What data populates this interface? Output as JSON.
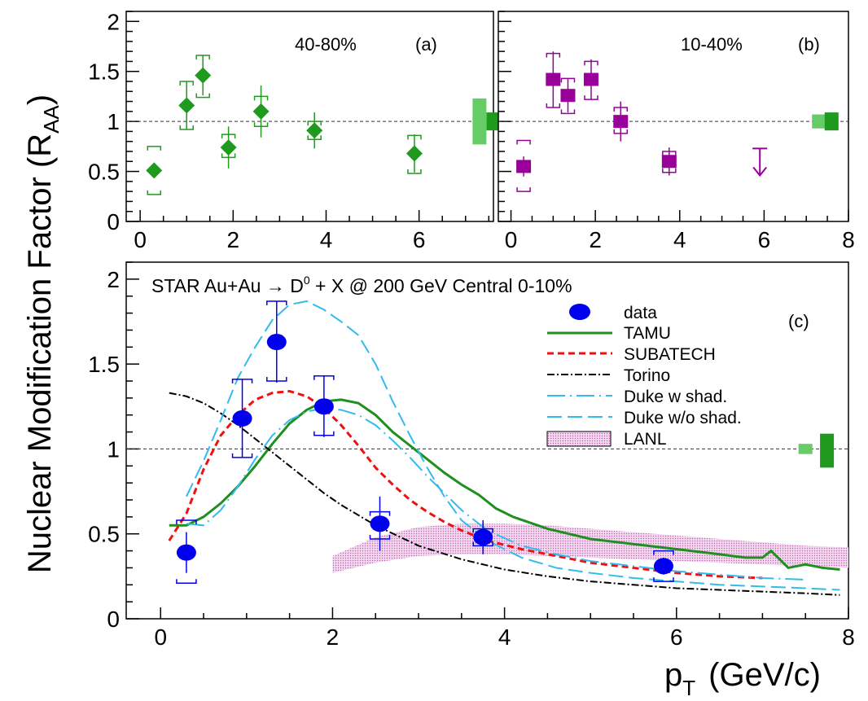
{
  "figure": {
    "ylabel_main": "Nuclear Modification Factor (R",
    "ylabel_sub": "AA",
    "ylabel_close": ")",
    "xlabel_main": "p",
    "xlabel_sub": "T",
    "xlabel_unit": "(GeV/c)"
  },
  "colors": {
    "green": "#1f9a1f",
    "light_green": "#66cc66",
    "purple": "#990099",
    "light_purple": "#cc66cc",
    "blue": "#0000ee",
    "tamu": "#1f8f1f",
    "subatech": "#ee1111",
    "duke": "#33bbee",
    "lanl_fill": "#e6b3dd"
  },
  "chart_data": [
    {
      "id": "a",
      "type": "scatter",
      "annotation": "40-80%",
      "panel_label": "(a)",
      "xlim": [
        -0.3,
        7.6
      ],
      "ylim": [
        0,
        2.1
      ],
      "xticks": [
        "0",
        "2",
        "4",
        "6"
      ],
      "yticks": [
        "0",
        "0.5",
        "1",
        "1.5",
        "2"
      ],
      "reference_line": 1,
      "series": [
        {
          "marker": "diamond",
          "x": [
            0.3,
            1.0,
            1.35,
            1.9,
            2.6,
            3.75,
            5.9
          ],
          "y": [
            0.51,
            1.16,
            1.46,
            0.74,
            1.1,
            0.91,
            0.68
          ],
          "stat_err": [
            0.0,
            0.24,
            0.2,
            0.21,
            0.26,
            0.18,
            0.19
          ],
          "sys_low": [
            0.27,
            0.92,
            1.24,
            0.64,
            0.95,
            0.82,
            0.48
          ],
          "sys_high": [
            0.75,
            1.4,
            1.66,
            0.87,
            1.25,
            1.0,
            0.86
          ]
        }
      ],
      "norm_boxes": [
        {
          "x": 7.3,
          "low": 0.77,
          "high": 1.23,
          "color": "light"
        },
        {
          "x": 7.6,
          "low": 0.91,
          "high": 1.09,
          "color": "dark"
        }
      ]
    },
    {
      "id": "b",
      "type": "scatter",
      "annotation": "10-40%",
      "panel_label": "(b)",
      "xlim": [
        -0.3,
        8.0
      ],
      "ylim": [
        0,
        2.1
      ],
      "xticks": [
        "0",
        "2",
        "4",
        "6",
        "8"
      ],
      "yticks": [],
      "reference_line": 1,
      "series": [
        {
          "marker": "square",
          "x": [
            0.3,
            1.0,
            1.35,
            1.9,
            2.6,
            3.75
          ],
          "y": [
            0.55,
            1.42,
            1.26,
            1.42,
            1.0,
            0.6
          ],
          "stat_err": [
            0.1,
            0.28,
            0.17,
            0.2,
            0.2,
            0.14
          ],
          "sys_low": [
            0.3,
            1.14,
            1.08,
            1.22,
            0.88,
            0.49
          ],
          "sys_high": [
            0.81,
            1.68,
            1.43,
            1.6,
            1.14,
            0.7
          ]
        }
      ],
      "upper_limit": {
        "x": 5.9,
        "y": 0.73
      },
      "norm_boxes": [
        {
          "x": 7.3,
          "low": 0.93,
          "high": 1.07,
          "color": "light"
        },
        {
          "x": 7.6,
          "low": 0.91,
          "high": 1.09,
          "color": "dark"
        }
      ]
    },
    {
      "id": "c",
      "type": "line",
      "title": "STAR Au+Au → D",
      "title_sup": "0",
      "title_rest": " + X @ 200 GeV Central 0-10%",
      "panel_label": "(c)",
      "xlim": [
        -0.4,
        8.0
      ],
      "ylim": [
        0,
        2.1
      ],
      "xticks": [
        "0",
        "2",
        "4",
        "6",
        "8"
      ],
      "yticks": [
        "0",
        "0.5",
        "1",
        "1.5",
        "2"
      ],
      "reference_line": 1,
      "legend": [
        "data",
        "TAMU",
        "SUBATECH",
        "Torino",
        "Duke w shad.",
        "Duke w/o shad.",
        "LANL"
      ],
      "data": {
        "x": [
          0.3,
          0.95,
          1.35,
          1.9,
          2.55,
          3.75,
          5.85
        ],
        "y": [
          0.39,
          1.18,
          1.63,
          1.25,
          0.56,
          0.48,
          0.31
        ],
        "stat_err": [
          0.12,
          0.23,
          0.24,
          0.18,
          0.16,
          0.1,
          0.05
        ],
        "sys_low": [
          0.21,
          0.95,
          1.4,
          1.08,
          0.47,
          0.43,
          0.22
        ],
        "sys_high": [
          0.58,
          1.41,
          1.87,
          1.43,
          0.63,
          0.53,
          0.4
        ]
      },
      "series": [
        {
          "name": "TAMU",
          "x": [
            0.1,
            0.3,
            0.5,
            0.7,
            0.9,
            1.1,
            1.3,
            1.5,
            1.7,
            1.9,
            2.1,
            2.3,
            2.5,
            2.7,
            2.9,
            3.1,
            3.3,
            3.5,
            3.7,
            3.9,
            4.1,
            4.5,
            5.0,
            5.5,
            6.0,
            6.5,
            6.8,
            7.0,
            7.1,
            7.3,
            7.5,
            7.7,
            7.9
          ],
          "y": [
            0.55,
            0.55,
            0.6,
            0.68,
            0.78,
            0.9,
            1.03,
            1.15,
            1.23,
            1.28,
            1.29,
            1.27,
            1.2,
            1.1,
            1.02,
            0.94,
            0.86,
            0.79,
            0.73,
            0.65,
            0.6,
            0.53,
            0.47,
            0.44,
            0.41,
            0.38,
            0.36,
            0.36,
            0.4,
            0.3,
            0.32,
            0.3,
            0.29
          ]
        },
        {
          "name": "SUBATECH",
          "x": [
            0.1,
            0.3,
            0.5,
            0.7,
            0.9,
            1.1,
            1.3,
            1.5,
            1.7,
            1.9,
            2.1,
            2.3,
            2.5,
            2.7,
            2.9,
            3.1,
            3.3,
            3.5,
            3.8,
            4.2,
            4.6,
            5.0,
            5.5,
            6.0,
            6.5,
            7.0
          ],
          "y": [
            0.46,
            0.62,
            0.88,
            1.08,
            1.2,
            1.29,
            1.33,
            1.34,
            1.31,
            1.24,
            1.14,
            1.02,
            0.89,
            0.79,
            0.7,
            0.63,
            0.57,
            0.52,
            0.46,
            0.41,
            0.37,
            0.33,
            0.3,
            0.27,
            0.25,
            0.24
          ]
        },
        {
          "name": "Torino",
          "x": [
            0.1,
            0.3,
            0.5,
            0.7,
            0.9,
            1.1,
            1.3,
            1.5,
            1.7,
            1.9,
            2.1,
            2.5,
            3.0,
            3.5,
            4.0,
            4.5,
            5.0,
            5.5,
            6.0,
            6.5,
            7.0,
            7.5,
            7.9
          ],
          "y": [
            1.33,
            1.31,
            1.27,
            1.21,
            1.14,
            1.06,
            0.98,
            0.9,
            0.82,
            0.74,
            0.67,
            0.55,
            0.43,
            0.35,
            0.29,
            0.25,
            0.22,
            0.2,
            0.18,
            0.17,
            0.16,
            0.15,
            0.14
          ]
        },
        {
          "name": "Duke w shad.",
          "x": [
            0.3,
            0.5,
            0.7,
            0.9,
            1.1,
            1.3,
            1.5,
            1.7,
            1.9,
            2.1,
            2.3,
            2.5,
            2.7,
            2.9,
            3.1,
            3.3,
            3.5,
            3.8,
            4.2,
            4.6,
            5.0,
            5.5,
            6.0,
            6.5,
            7.0,
            7.5
          ],
          "y": [
            0.56,
            0.55,
            0.64,
            0.78,
            0.94,
            1.08,
            1.17,
            1.22,
            1.24,
            1.23,
            1.2,
            1.14,
            1.05,
            0.95,
            0.84,
            0.74,
            0.64,
            0.52,
            0.43,
            0.38,
            0.34,
            0.31,
            0.28,
            0.26,
            0.24,
            0.23
          ]
        },
        {
          "name": "Duke w/o shad.",
          "x": [
            0.3,
            0.5,
            0.7,
            0.9,
            1.1,
            1.3,
            1.5,
            1.7,
            1.9,
            2.1,
            2.3,
            2.5,
            2.7,
            2.9,
            3.1,
            3.3,
            3.5,
            3.8,
            4.2,
            4.6,
            5.0,
            5.5,
            6.0,
            6.5,
            7.0,
            7.5,
            7.9
          ],
          "y": [
            0.72,
            0.93,
            1.17,
            1.42,
            1.6,
            1.76,
            1.85,
            1.87,
            1.82,
            1.75,
            1.67,
            1.5,
            1.28,
            1.08,
            0.89,
            0.72,
            0.58,
            0.46,
            0.36,
            0.3,
            0.27,
            0.24,
            0.22,
            0.2,
            0.19,
            0.18,
            0.17
          ]
        }
      ],
      "lanl_band": {
        "x": [
          2.0,
          2.5,
          3.0,
          3.5,
          4.0,
          4.5,
          5.0,
          5.5,
          6.0,
          6.5,
          7.0,
          7.5,
          8.0
        ],
        "low": [
          0.27,
          0.33,
          0.37,
          0.38,
          0.38,
          0.37,
          0.36,
          0.35,
          0.34,
          0.33,
          0.32,
          0.31,
          0.3
        ],
        "high": [
          0.37,
          0.48,
          0.54,
          0.56,
          0.56,
          0.55,
          0.53,
          0.51,
          0.49,
          0.47,
          0.45,
          0.43,
          0.42
        ]
      },
      "norm_boxes": [
        {
          "x": 7.5,
          "low": 0.97,
          "high": 1.03,
          "color": "light"
        },
        {
          "x": 7.75,
          "low": 0.89,
          "high": 1.09,
          "color": "dark"
        }
      ]
    }
  ]
}
